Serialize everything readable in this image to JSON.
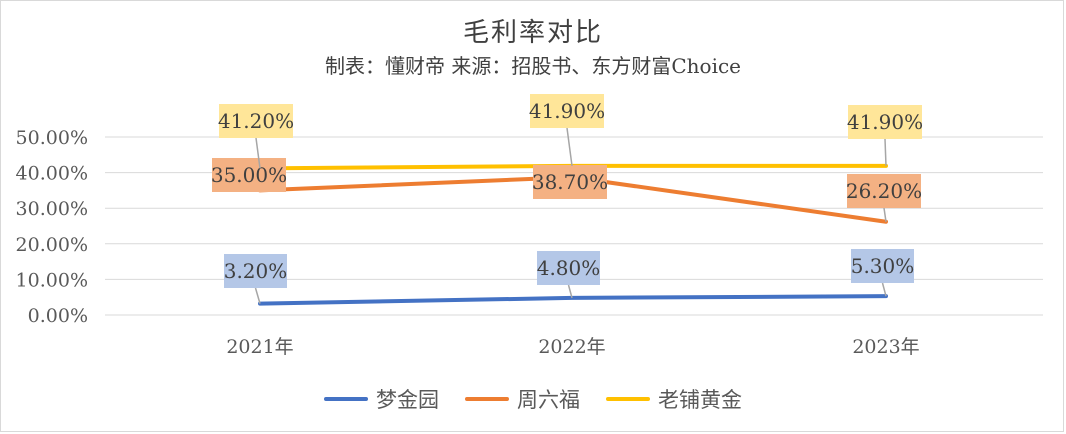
{
  "chart_data": {
    "type": "line",
    "title": "毛利率对比",
    "subtitle": "制表：懂财帝  来源：招股书、东方财富Choice",
    "categories": [
      "2021年",
      "2022年",
      "2023年"
    ],
    "y_ticks": [
      "0.00%",
      "10.00%",
      "20.00%",
      "30.00%",
      "40.00%",
      "50.00%"
    ],
    "ylim": [
      0,
      50
    ],
    "grid": true,
    "legend_position": "bottom",
    "series": [
      {
        "name": "梦金园",
        "values": [
          3.2,
          4.8,
          5.3
        ],
        "labels": [
          "3.20%",
          "4.80%",
          "5.30%"
        ],
        "color": "#4472c4",
        "label_bg": "#b4c7e7"
      },
      {
        "name": "周六福",
        "values": [
          35.0,
          38.7,
          26.2
        ],
        "labels": [
          "35.00%",
          "38.70%",
          "26.20%"
        ],
        "color": "#ed7d31",
        "label_bg": "#f4b183"
      },
      {
        "name": "老铺黄金",
        "values": [
          41.2,
          41.9,
          41.9
        ],
        "labels": [
          "41.20%",
          "41.90%",
          "41.90%"
        ],
        "color": "#ffc000",
        "label_bg": "#ffe699"
      }
    ]
  }
}
